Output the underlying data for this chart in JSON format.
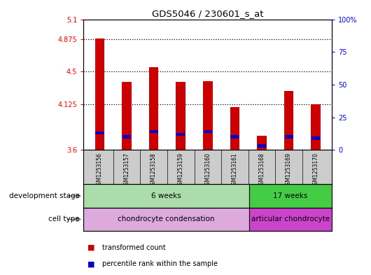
{
  "title": "GDS5046 / 230601_s_at",
  "samples": [
    "GSM1253156",
    "GSM1253157",
    "GSM1253158",
    "GSM1253159",
    "GSM1253160",
    "GSM1253161",
    "GSM1253168",
    "GSM1253169",
    "GSM1253170"
  ],
  "transformed_count": [
    4.88,
    4.38,
    4.55,
    4.38,
    4.39,
    4.09,
    3.76,
    4.28,
    4.12
  ],
  "percentile_rank": [
    13,
    10,
    14,
    12,
    14,
    10,
    3,
    10,
    9
  ],
  "ylim_left": [
    3.6,
    5.1
  ],
  "ylim_right": [
    0,
    100
  ],
  "yticks_left": [
    3.6,
    4.125,
    4.5,
    4.875,
    5.1
  ],
  "yticks_right": [
    0,
    25,
    50,
    75,
    100
  ],
  "ytick_labels_left": [
    "3.6",
    "4.125",
    "4.5",
    "4.875",
    "5.1"
  ],
  "ytick_labels_right": [
    "0",
    "25",
    "50",
    "75",
    "100%"
  ],
  "hlines": [
    4.875,
    4.5,
    4.125
  ],
  "bar_color_red": "#cc0000",
  "bar_color_blue": "#0000cc",
  "bar_width": 0.35,
  "dev_stage_groups": [
    {
      "label": "6 weeks",
      "start": 0,
      "end": 6,
      "color": "#aaddaa"
    },
    {
      "label": "17 weeks",
      "start": 6,
      "end": 9,
      "color": "#44cc44"
    }
  ],
  "cell_type_groups": [
    {
      "label": "chondrocyte condensation",
      "start": 0,
      "end": 6,
      "color": "#ddaadd"
    },
    {
      "label": "articular chondrocyte",
      "start": 6,
      "end": 9,
      "color": "#cc44cc"
    }
  ],
  "legend_items": [
    {
      "label": "transformed count",
      "color": "#cc0000"
    },
    {
      "label": "percentile rank within the sample",
      "color": "#0000cc"
    }
  ],
  "bg_color": "#ffffff",
  "tick_area_bg": "#cccccc"
}
